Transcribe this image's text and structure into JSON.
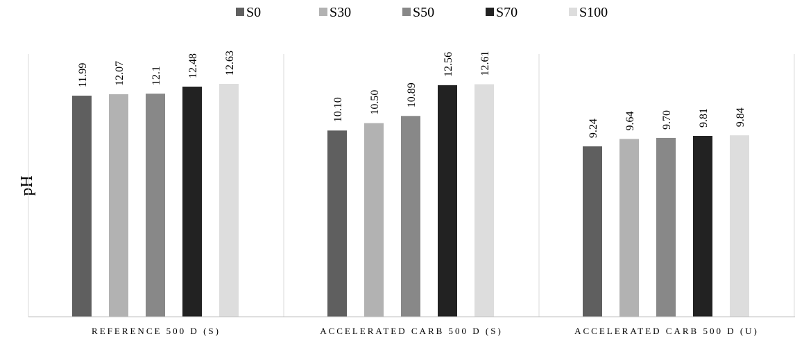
{
  "chart_data": {
    "type": "bar",
    "categories": [
      "REFERENCE 500 D (S)",
      "ACCELERATED CARB 500 D (S)",
      "ACCELERATED CARB 500 D (U)"
    ],
    "series": [
      {
        "name": "S0",
        "color": "#5f5f5f",
        "values": [
          11.99,
          10.1,
          9.24
        ],
        "labels": [
          "11.99",
          "10.10",
          "9.24"
        ]
      },
      {
        "name": "S30",
        "color": "#b2b2b2",
        "values": [
          12.07,
          10.5,
          9.64
        ],
        "labels": [
          "12.07",
          "10.50",
          "9.64"
        ]
      },
      {
        "name": "S50",
        "color": "#888888",
        "values": [
          12.1,
          10.89,
          9.7
        ],
        "labels": [
          "12.1",
          "10.89",
          "9.70"
        ]
      },
      {
        "name": "S70",
        "color": "#222222",
        "values": [
          12.48,
          12.56,
          9.81
        ],
        "labels": [
          "12.48",
          "12.56",
          "9.81"
        ]
      },
      {
        "name": "S100",
        "color": "#dddddd",
        "values": [
          12.63,
          12.61,
          9.84
        ],
        "labels": [
          "12.63",
          "12.61",
          "9.84"
        ]
      }
    ],
    "title": "",
    "xlabel": "",
    "ylabel": "pH",
    "ylim": [
      0,
      12.63
    ],
    "grid": false,
    "legend": "top"
  }
}
